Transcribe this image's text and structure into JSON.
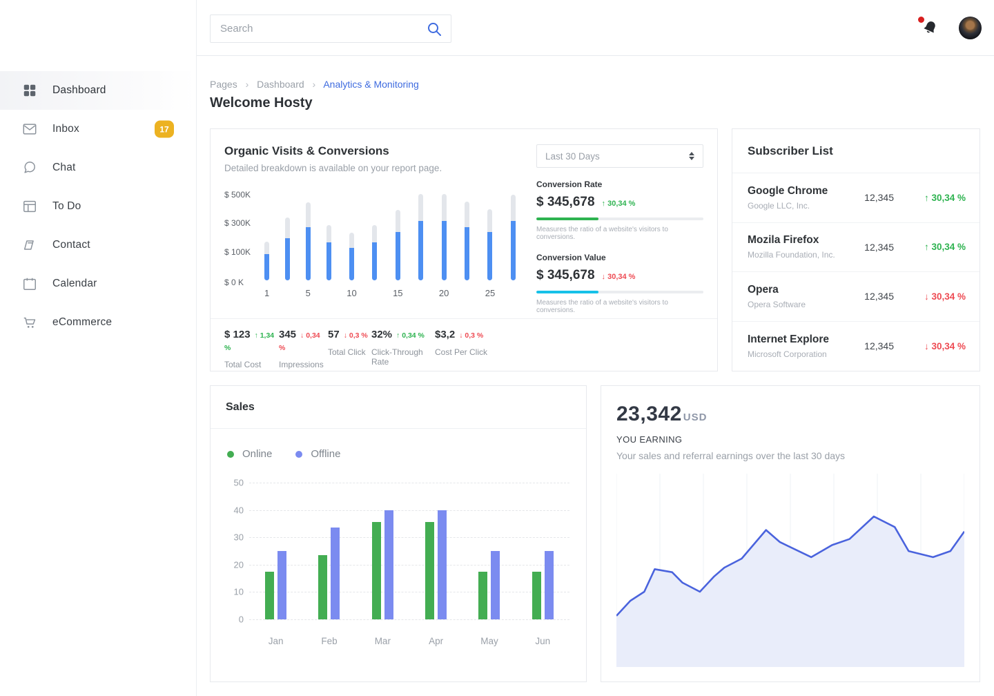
{
  "header": {
    "search": {
      "placeholder": "Search"
    }
  },
  "sidebar": {
    "items": [
      {
        "label": "Dashboard",
        "icon": "grid",
        "active": true
      },
      {
        "label": "Inbox",
        "icon": "mail",
        "badge": "17"
      },
      {
        "label": "Chat",
        "icon": "chat"
      },
      {
        "label": "To Do",
        "icon": "todo"
      },
      {
        "label": "Contact",
        "icon": "contact"
      },
      {
        "label": "Calendar",
        "icon": "calendar"
      },
      {
        "label": "eCommerce",
        "icon": "cart"
      }
    ],
    "badge_color": "#ecb222"
  },
  "breadcrumb": [
    "Pages",
    "Dashboard",
    "Analytics & Monitoring"
  ],
  "page_title": "Welcome Hosty",
  "colors": {
    "accent_blue": "#3e6bdf",
    "green": "#2eb350",
    "red": "#ee4a52",
    "cyan": "#17c1e8",
    "bar_blue": "#4d8ff2",
    "bar_track": "#e3e6eb",
    "online_green": "#43ad52",
    "offline_blue": "#7b8bf0",
    "area_line": "#4a63dd",
    "area_fill": "#e9edfa"
  },
  "organic": {
    "title": "Organic Visits & Conversions",
    "subtitle": "Detailed breakdown is available on your report page.",
    "period_select": "Last 30 Days",
    "chart_data": {
      "type": "bar",
      "y_ticks": [
        "$ 500K",
        "$ 300K",
        "$ 100K",
        "$ 0 K"
      ],
      "x_ticks": [
        "1",
        "5",
        "10",
        "15",
        "20",
        "25"
      ],
      "ymax": 510,
      "series": [
        {
          "name": "total",
          "color": "#e3e6eb",
          "values": [
            230,
            370,
            460,
            325,
            280,
            325,
            415,
            510,
            510,
            465,
            420,
            505
          ]
        },
        {
          "name": "visits",
          "color": "#4d8ff2",
          "values": [
            155,
            250,
            315,
            225,
            190,
            225,
            285,
            350,
            350,
            315,
            285,
            350
          ]
        }
      ]
    },
    "conversion_rate": {
      "label": "Conversion Rate",
      "value": "$ 345,678",
      "delta": "30,34 %",
      "direction": "up",
      "progress_pct": 37,
      "bar_color": "#2eb350",
      "caption": "Measures the ratio of a website's visitors to conversions."
    },
    "conversion_value": {
      "label": "Conversion Value",
      "value": "$ 345,678",
      "delta": "30,34 %",
      "direction": "down",
      "progress_pct": 37,
      "bar_color": "#17c1e8",
      "caption": "Measures the ratio of a website's visitors to conversions."
    },
    "stats": [
      {
        "value": "$ 123",
        "delta": "1,34 %",
        "direction": "up",
        "label": "Total Cost"
      },
      {
        "value": "345",
        "delta": "0,34 %",
        "direction": "down",
        "label": "Impressions"
      },
      {
        "value": "57",
        "delta": "0,3 %",
        "direction": "down",
        "label": "Total Click"
      },
      {
        "value": "32%",
        "delta": "0,34 %",
        "direction": "up",
        "label": "Click-Through Rate"
      },
      {
        "value": "$3,2",
        "delta": "0,3 %",
        "direction": "down",
        "label": "Cost Per Click"
      }
    ]
  },
  "subscribers": {
    "title": "Subscriber List",
    "rows": [
      {
        "name": "Google Chrome",
        "company": "Google LLC, Inc.",
        "value": "12,345",
        "delta": "30,34 %",
        "direction": "up"
      },
      {
        "name": "Mozila Firefox",
        "company": "Mozilla Foundation, Inc.",
        "value": "12,345",
        "delta": "30,34 %",
        "direction": "up"
      },
      {
        "name": "Opera",
        "company": "Opera Software",
        "value": "12,345",
        "delta": "30,34 %",
        "direction": "down"
      },
      {
        "name": "Internet Explore",
        "company": "Microsoft Corporation",
        "value": "12,345",
        "delta": "30,34 %",
        "direction": "down"
      }
    ]
  },
  "sales": {
    "title": "Sales",
    "chart_data": {
      "type": "bar",
      "categories": [
        "Jan",
        "Feb",
        "Mar",
        "Apr",
        "May",
        "Jun"
      ],
      "y_ticks": [
        50,
        40,
        30,
        20,
        10,
        0
      ],
      "ymax": 50,
      "grid": true,
      "legend_position": "top-left",
      "series": [
        {
          "name": "Online",
          "color": "#43ad52",
          "values": [
            17.5,
            23.5,
            35.5,
            35.5,
            17.5,
            17.5
          ]
        },
        {
          "name": "Offline",
          "color": "#7b8bf0",
          "values": [
            25,
            33.5,
            40,
            40,
            25,
            25
          ]
        }
      ]
    }
  },
  "earnings": {
    "amount": "23,342",
    "currency": "USD",
    "label": "YOU EARNING",
    "caption": "Your sales and referral earnings over the last 30 days",
    "chart_data": {
      "type": "area",
      "line_color": "#4a63dd",
      "fill_color": "#e9edfa",
      "grid": "vertical",
      "x_pct": [
        0,
        4,
        8,
        11,
        16,
        19,
        24,
        28,
        31,
        36,
        43,
        47,
        56,
        62,
        67,
        74,
        80,
        84,
        91,
        96,
        100
      ],
      "values": [
        34,
        44,
        50,
        65,
        63,
        56,
        50,
        60,
        66,
        72,
        91,
        83,
        73,
        81,
        85,
        100,
        93,
        77,
        73,
        77,
        90
      ],
      "value_range": [
        0,
        100
      ]
    }
  }
}
